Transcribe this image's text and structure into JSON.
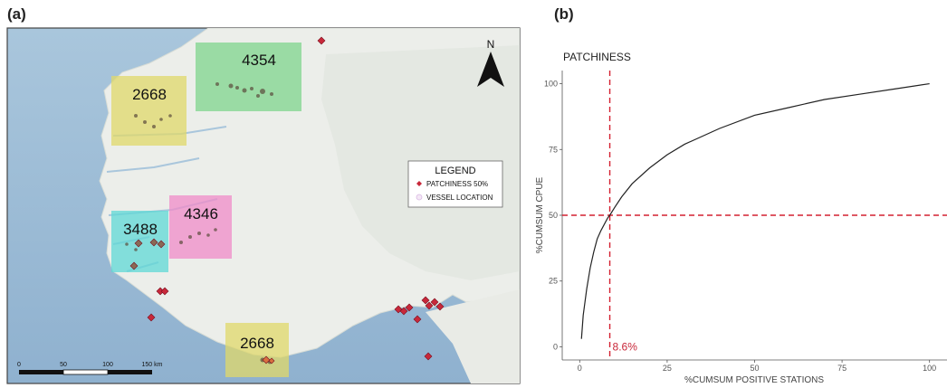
{
  "panels": {
    "a_label": "(a)",
    "b_label": "(b)"
  },
  "map": {
    "north_label": "N",
    "legend": {
      "title": "LEGEND",
      "items": [
        {
          "label": "PATCHINESS 50%",
          "color": "#c8283a",
          "symbol": "diamond"
        },
        {
          "label": "VESSEL LOCATION",
          "color": "#d9b8e3",
          "symbol": "circle"
        }
      ]
    },
    "areas": [
      {
        "label": "4354",
        "color": "#7fd48c"
      },
      {
        "label": "2668",
        "color": "#e0d86a"
      },
      {
        "label": "3488",
        "color": "#5fd8d6"
      },
      {
        "label": "4346",
        "color": "#f08bc8"
      },
      {
        "label": "2668",
        "color": "#e0d86a"
      }
    ],
    "scale": {
      "ticks": [
        "0",
        "50",
        "100",
        "150 km"
      ]
    }
  },
  "chart_data": {
    "type": "line",
    "title": "PATCHINESS",
    "xlabel": "%CUMSUM POSITIVE STATIONS",
    "ylabel": "%CUMSUM  CPUE",
    "xlim": [
      -5,
      105
    ],
    "ylim": [
      -5,
      105
    ],
    "xticks": [
      0,
      25,
      50,
      75,
      100
    ],
    "yticks": [
      0,
      25,
      50,
      75,
      100
    ],
    "grid": false,
    "series": [
      {
        "x": [
          0.5,
          1,
          2,
          3,
          4,
          5,
          6,
          8,
          8.6,
          10,
          12,
          15,
          20,
          25,
          30,
          40,
          50,
          60,
          70,
          80,
          90,
          100
        ],
        "y": [
          3,
          12,
          22,
          30,
          36,
          41,
          44,
          49,
          50,
          53,
          57,
          62,
          68,
          73,
          77,
          83,
          88,
          91,
          94,
          96,
          98,
          100
        ],
        "color": "#222222"
      }
    ],
    "reference_lines": {
      "vline_x": 8.6,
      "hline_y": 50,
      "color": "#d42030"
    },
    "annotation": {
      "text": "8.6%",
      "x": 8.6,
      "y": 0
    }
  }
}
